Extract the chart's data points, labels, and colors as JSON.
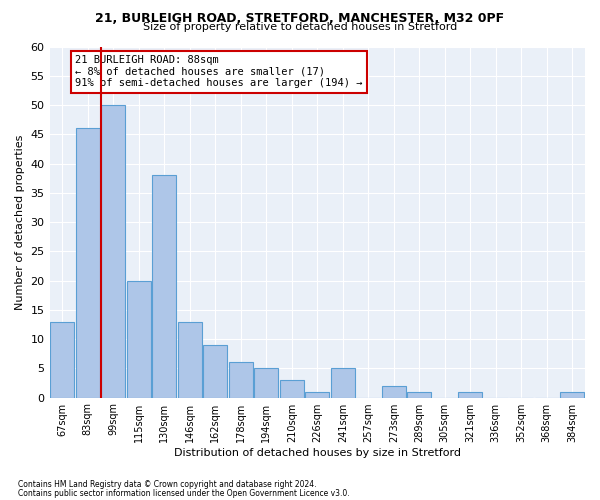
{
  "title1": "21, BURLEIGH ROAD, STRETFORD, MANCHESTER, M32 0PF",
  "title2": "Size of property relative to detached houses in Stretford",
  "xlabel": "Distribution of detached houses by size in Stretford",
  "ylabel": "Number of detached properties",
  "footnote1": "Contains HM Land Registry data © Crown copyright and database right 2024.",
  "footnote2": "Contains public sector information licensed under the Open Government Licence v3.0.",
  "annotation_line1": "21 BURLEIGH ROAD: 88sqm",
  "annotation_line2": "← 8% of detached houses are smaller (17)",
  "annotation_line3": "91% of semi-detached houses are larger (194) →",
  "bar_labels": [
    "67sqm",
    "83sqm",
    "99sqm",
    "115sqm",
    "130sqm",
    "146sqm",
    "162sqm",
    "178sqm",
    "194sqm",
    "210sqm",
    "226sqm",
    "241sqm",
    "257sqm",
    "273sqm",
    "289sqm",
    "305sqm",
    "321sqm",
    "336sqm",
    "352sqm",
    "368sqm",
    "384sqm"
  ],
  "bar_values": [
    13,
    46,
    50,
    20,
    38,
    13,
    9,
    6,
    5,
    3,
    1,
    5,
    0,
    2,
    1,
    0,
    1,
    0,
    0,
    0,
    1
  ],
  "bar_color": "#aec6e8",
  "bar_edge_color": "#5a9fd4",
  "vline_color": "#cc0000",
  "bg_color": "#eaf0f8",
  "annotation_box_color": "#cc0000",
  "ylim": [
    0,
    60
  ],
  "yticks": [
    0,
    5,
    10,
    15,
    20,
    25,
    30,
    35,
    40,
    45,
    50,
    55,
    60
  ]
}
